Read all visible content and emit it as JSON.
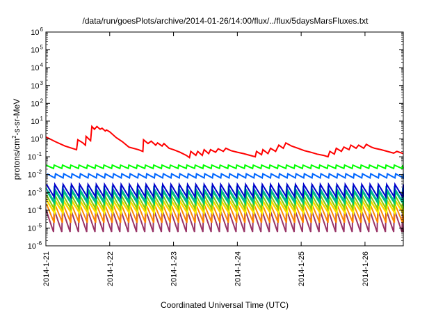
{
  "chart_data": {
    "type": "line",
    "title": "/data/run/goesPlots/archive/2014-01-26/14:00/flux/../flux/5daysMarsFluxes.txt",
    "xlabel": "Coordinated Universal Time (UTC)",
    "ylabel_main": "protons/cm",
    "ylabel_sup": "2",
    "ylabel_tail": "-s-sr-MeV",
    "yscale": "log",
    "ylim_exp": [
      -6,
      6
    ],
    "y_tick_base": "10",
    "y_tick_exponents": [
      "6",
      "5",
      "4",
      "3",
      "2",
      "1",
      "0",
      "-1",
      "-2",
      "-3",
      "-4",
      "-5",
      "-6"
    ],
    "xlim_days": [
      0,
      5.6
    ],
    "x_tick_labels": [
      "2014-1-21",
      "2014-1-22",
      "2014-1-23",
      "2014-1-24",
      "2014-1-25",
      "2014-1-26"
    ],
    "grid": false,
    "series": [
      {
        "color": "#ff0000",
        "width": 2,
        "points": [
          [
            0,
            1.3
          ],
          [
            0.15,
            0.7
          ],
          [
            0.3,
            0.4
          ],
          [
            0.48,
            0.25
          ],
          [
            0.5,
            0.9
          ],
          [
            0.58,
            0.6
          ],
          [
            0.62,
            0.45
          ],
          [
            0.63,
            1.4
          ],
          [
            0.7,
            0.8
          ],
          [
            0.72,
            5
          ],
          [
            0.76,
            3.5
          ],
          [
            0.8,
            5
          ],
          [
            0.85,
            3.5
          ],
          [
            0.88,
            4
          ],
          [
            0.93,
            2.8
          ],
          [
            0.95,
            3.2
          ],
          [
            1.0,
            2.5
          ],
          [
            1.1,
            1.2
          ],
          [
            1.2,
            0.7
          ],
          [
            1.3,
            0.35
          ],
          [
            1.45,
            0.25
          ],
          [
            1.52,
            0.2
          ],
          [
            1.53,
            0.9
          ],
          [
            1.6,
            0.55
          ],
          [
            1.65,
            0.75
          ],
          [
            1.72,
            0.45
          ],
          [
            1.75,
            0.6
          ],
          [
            1.82,
            0.4
          ],
          [
            1.85,
            0.55
          ],
          [
            1.93,
            0.3
          ],
          [
            2.0,
            0.25
          ],
          [
            2.1,
            0.18
          ],
          [
            2.2,
            0.12
          ],
          [
            2.25,
            0.09
          ],
          [
            2.27,
            0.2
          ],
          [
            2.35,
            0.12
          ],
          [
            2.38,
            0.2
          ],
          [
            2.45,
            0.12
          ],
          [
            2.48,
            0.25
          ],
          [
            2.55,
            0.15
          ],
          [
            2.58,
            0.25
          ],
          [
            2.66,
            0.18
          ],
          [
            2.7,
            0.28
          ],
          [
            2.78,
            0.2
          ],
          [
            2.82,
            0.3
          ],
          [
            2.9,
            0.22
          ],
          [
            3.0,
            0.18
          ],
          [
            3.1,
            0.15
          ],
          [
            3.2,
            0.12
          ],
          [
            3.28,
            0.1
          ],
          [
            3.3,
            0.2
          ],
          [
            3.38,
            0.13
          ],
          [
            3.4,
            0.25
          ],
          [
            3.48,
            0.15
          ],
          [
            3.52,
            0.3
          ],
          [
            3.6,
            0.2
          ],
          [
            3.65,
            0.45
          ],
          [
            3.72,
            0.3
          ],
          [
            3.76,
            0.6
          ],
          [
            3.85,
            0.4
          ],
          [
            3.95,
            0.3
          ],
          [
            4.05,
            0.22
          ],
          [
            4.15,
            0.18
          ],
          [
            4.25,
            0.14
          ],
          [
            4.35,
            0.12
          ],
          [
            4.42,
            0.1
          ],
          [
            4.45,
            0.2
          ],
          [
            4.52,
            0.14
          ],
          [
            4.55,
            0.3
          ],
          [
            4.63,
            0.2
          ],
          [
            4.67,
            0.35
          ],
          [
            4.75,
            0.25
          ],
          [
            4.78,
            0.45
          ],
          [
            4.86,
            0.3
          ],
          [
            4.9,
            0.45
          ],
          [
            4.98,
            0.3
          ],
          [
            5.02,
            0.5
          ],
          [
            5.1,
            0.35
          ],
          [
            5.15,
            0.3
          ],
          [
            5.25,
            0.25
          ],
          [
            5.35,
            0.2
          ],
          [
            5.45,
            0.16
          ],
          [
            5.5,
            0.2
          ],
          [
            5.6,
            0.15
          ]
        ]
      },
      {
        "color": "#00ff00",
        "width": 2,
        "period": 0.13,
        "lo": 0.022,
        "hi": 0.034
      },
      {
        "color": "#0066ff",
        "width": 2,
        "period": 0.13,
        "lo": 0.0065,
        "hi": 0.011
      },
      {
        "color": "#0000cc",
        "width": 2,
        "period": 0.13,
        "lo": 0.00055,
        "hi": 0.0028
      },
      {
        "color": "#00b0a0",
        "width": 2,
        "period": 0.13,
        "lo": 0.00035,
        "hi": 0.0018
      },
      {
        "color": "#00cc66",
        "width": 2,
        "period": 0.13,
        "lo": 0.00022,
        "hi": 0.0011
      },
      {
        "color": "#88cc00",
        "width": 2,
        "period": 0.13,
        "lo": 0.00012,
        "hi": 0.0007
      },
      {
        "color": "#ffcc00",
        "width": 2,
        "period": 0.13,
        "lo": 9e-05,
        "hi": 0.00045
      },
      {
        "color": "#ffff00",
        "width": 2,
        "period": 0.13,
        "lo": 6.5e-05,
        "hi": 0.0003
      },
      {
        "color": "#ff8800",
        "width": 2,
        "period": 0.13,
        "lo": 2e-05,
        "hi": 0.00022
      },
      {
        "color": "#993366",
        "width": 2,
        "period": 0.13,
        "lo": 6e-06,
        "hi": 0.00011
      }
    ]
  }
}
